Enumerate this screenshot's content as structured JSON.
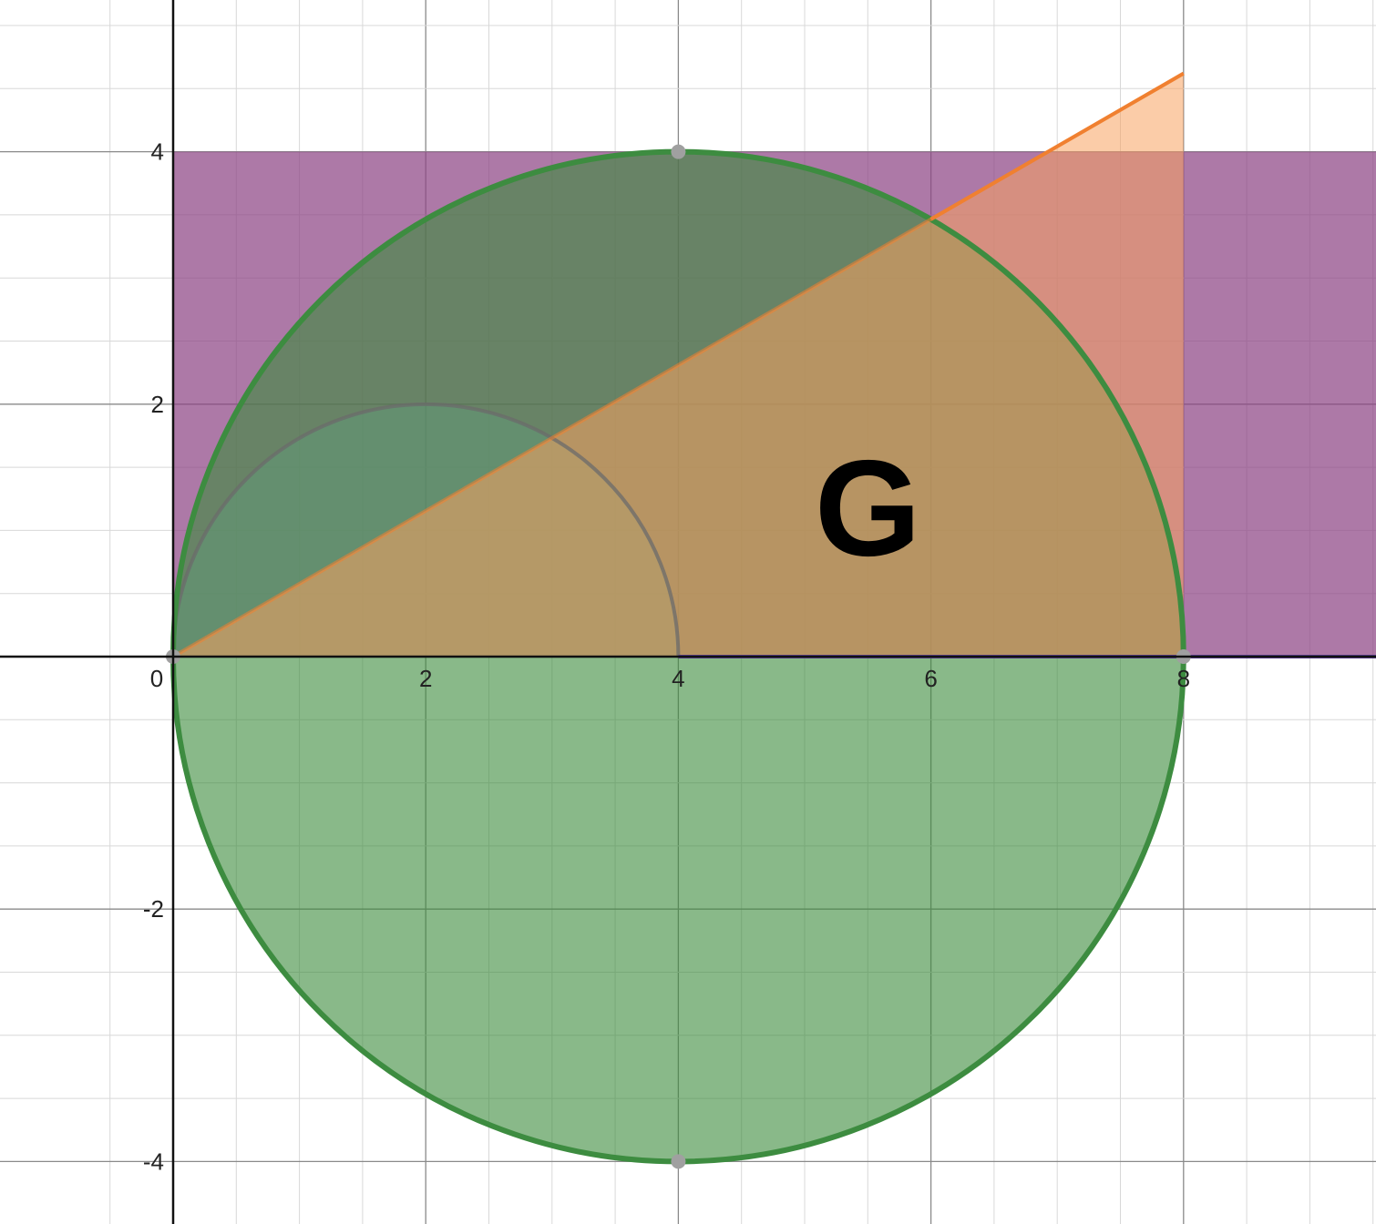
{
  "chart_data": {
    "type": "diagram",
    "title": "",
    "xlabel": "",
    "ylabel": "",
    "xlim": [
      -0.68,
      9.54
    ],
    "ylim": [
      -4.48,
      5.22
    ],
    "grid": true,
    "x_ticks": [
      {
        "value": 0,
        "label": "0"
      },
      {
        "value": 2,
        "label": "2"
      },
      {
        "value": 4,
        "label": "4"
      },
      {
        "value": 6,
        "label": "6"
      },
      {
        "value": 8,
        "label": "8"
      }
    ],
    "y_ticks": [
      {
        "value": 4,
        "label": "4"
      },
      {
        "value": 2,
        "label": "2"
      },
      {
        "value": -2,
        "label": "-2"
      },
      {
        "value": -4,
        "label": "-4"
      }
    ],
    "shapes": {
      "rectangle": {
        "x_from": 0,
        "x_to": 9.54,
        "y_from": 0,
        "y_to": 4,
        "fill": "#8e4585",
        "opacity": 0.72
      },
      "large_circle": {
        "cx": 4,
        "cy": 0,
        "r": 4,
        "fill": "#3a8b3a",
        "opacity": 0.6,
        "stroke": "#3d8c40"
      },
      "small_semicircle": {
        "cx": 2,
        "cy": 0,
        "r": 2,
        "fill": "#5fa37c",
        "opacity": 0.4,
        "stroke": "#6b6b6b"
      },
      "triangle": {
        "points": [
          [
            0,
            0
          ],
          [
            8,
            0
          ],
          [
            8,
            4.62
          ]
        ],
        "fill": "#f7a360",
        "opacity": 0.55
      },
      "line": {
        "from": [
          0,
          0
        ],
        "to": [
          8,
          4.62
        ],
        "color": "#f08030"
      },
      "baseline": {
        "from": [
          4,
          0
        ],
        "to": [
          9.54,
          0
        ],
        "color": "#5b3e99"
      }
    },
    "points": [
      [
        0,
        0
      ],
      [
        8,
        0
      ],
      [
        4,
        4
      ],
      [
        4,
        -4
      ]
    ],
    "point_color": "#a0a0a0",
    "region_label": {
      "text": "G",
      "x": 5.5,
      "y": 1.2
    }
  }
}
